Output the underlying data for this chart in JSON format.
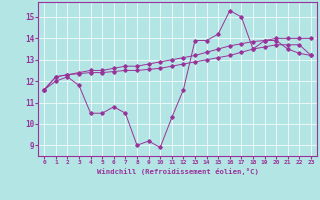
{
  "xlabel": "Windchill (Refroidissement éolien,°C)",
  "bg_color": "#b3e5e5",
  "line_color": "#993399",
  "grid_color": "#ffffff",
  "xlim": [
    -0.5,
    23.5
  ],
  "ylim": [
    8.5,
    15.7
  ],
  "yticks": [
    9,
    10,
    11,
    12,
    13,
    14,
    15
  ],
  "xticks": [
    0,
    1,
    2,
    3,
    4,
    5,
    6,
    7,
    8,
    9,
    10,
    11,
    12,
    13,
    14,
    15,
    16,
    17,
    18,
    19,
    20,
    21,
    22,
    23
  ],
  "line1_x": [
    0,
    1,
    2,
    3,
    4,
    5,
    6,
    7,
    8,
    9,
    10,
    11,
    12,
    13,
    14,
    15,
    16,
    17,
    18,
    19,
    20,
    21,
    22,
    23
  ],
  "line1_y": [
    11.6,
    12.0,
    12.2,
    11.8,
    10.5,
    10.5,
    10.8,
    10.5,
    9.0,
    9.2,
    8.9,
    10.3,
    11.6,
    13.9,
    13.9,
    14.2,
    15.3,
    15.0,
    13.5,
    13.9,
    13.9,
    13.5,
    13.3,
    13.2
  ],
  "line2_x": [
    0,
    1,
    2,
    3,
    4,
    5,
    6,
    7,
    8,
    9,
    10,
    11,
    12,
    13,
    14,
    15,
    16,
    17,
    18,
    19,
    20,
    21,
    22,
    23
  ],
  "line2_y": [
    11.6,
    12.2,
    12.3,
    12.4,
    12.5,
    12.5,
    12.6,
    12.7,
    12.7,
    12.8,
    12.9,
    13.0,
    13.1,
    13.2,
    13.35,
    13.5,
    13.65,
    13.75,
    13.85,
    13.9,
    14.0,
    14.0,
    14.0,
    14.0
  ],
  "line3_x": [
    0,
    1,
    2,
    3,
    4,
    5,
    6,
    7,
    8,
    9,
    10,
    11,
    12,
    13,
    14,
    15,
    16,
    17,
    18,
    19,
    20,
    21,
    22,
    23
  ],
  "line3_y": [
    11.6,
    12.2,
    12.3,
    12.35,
    12.4,
    12.4,
    12.45,
    12.5,
    12.5,
    12.55,
    12.6,
    12.7,
    12.8,
    12.9,
    13.0,
    13.1,
    13.2,
    13.35,
    13.5,
    13.6,
    13.7,
    13.7,
    13.7,
    13.2
  ]
}
